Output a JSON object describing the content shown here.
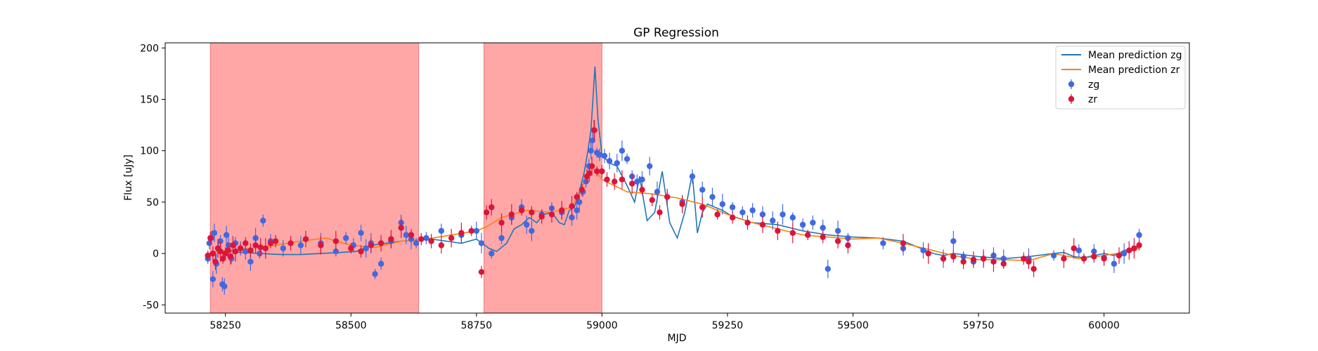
{
  "chart_data": {
    "type": "scatter",
    "title": "GP Regression",
    "xlabel": "MJD",
    "ylabel": "Flux [uJy]",
    "xlim": [
      58130,
      60170
    ],
    "ylim": [
      -58,
      205
    ],
    "xticks": [
      58250,
      58500,
      58750,
      59000,
      59250,
      59500,
      59750,
      60000
    ],
    "yticks": [
      -50,
      0,
      50,
      100,
      150,
      200
    ],
    "grid": false,
    "legend_position": "top-right",
    "shaded_regions": [
      {
        "x_start": 58220,
        "x_end": 58635,
        "color": "#ffa7a7"
      },
      {
        "x_start": 58765,
        "x_end": 59000,
        "color": "#ffa7a7"
      }
    ],
    "series": [
      {
        "name": "Mean prediction zg",
        "kind": "line",
        "color": "#1f77b4",
        "x": [
          58215,
          58235,
          58255,
          58280,
          58320,
          58360,
          58400,
          58440,
          58480,
          58510,
          58540,
          58570,
          58600,
          58630,
          58660,
          58690,
          58720,
          58750,
          58775,
          58790,
          58810,
          58825,
          58840,
          58855,
          58870,
          58885,
          58900,
          58915,
          58925,
          58935,
          58945,
          58955,
          58965,
          58972,
          58978,
          58982,
          58986,
          58992,
          59000,
          59015,
          59030,
          59050,
          59065,
          59075,
          59090,
          59105,
          59120,
          59135,
          59150,
          59165,
          59180,
          59190,
          59200,
          59210,
          59225,
          59240,
          59260,
          59300,
          59350,
          59400,
          59450,
          59500,
          59550,
          59600,
          59640,
          59660,
          59680,
          59700,
          59750,
          59800,
          59850,
          59900,
          59920,
          59940,
          59960,
          59980,
          60000,
          60020,
          60040,
          60060,
          60070
        ],
        "y": [
          0,
          2,
          3,
          1,
          0,
          -1,
          -1,
          0,
          1,
          2,
          8,
          10,
          12,
          13,
          14,
          12,
          10,
          14,
          5,
          2,
          10,
          24,
          28,
          35,
          30,
          38,
          40,
          30,
          28,
          42,
          45,
          60,
          80,
          100,
          120,
          150,
          182,
          130,
          96,
          88,
          85,
          66,
          50,
          75,
          32,
          40,
          80,
          30,
          15,
          40,
          78,
          20,
          40,
          48,
          45,
          42,
          36,
          30,
          28,
          22,
          18,
          16,
          15,
          12,
          4,
          0,
          -2,
          0,
          -3,
          -5,
          -3,
          0,
          1,
          -3,
          -4,
          -2,
          0,
          -2,
          3,
          5,
          7
        ]
      },
      {
        "name": "Mean prediction zr",
        "kind": "line",
        "color": "#ff7f0e",
        "x": [
          58215,
          58250,
          58300,
          58350,
          58400,
          58450,
          58500,
          58550,
          58600,
          58650,
          58700,
          58750,
          58770,
          58800,
          58850,
          58900,
          58940,
          58960,
          58980,
          59000,
          59050,
          59100,
          59150,
          59200,
          59250,
          59300,
          59350,
          59400,
          59450,
          59500,
          59550,
          59600,
          59650,
          59700,
          59750,
          59800,
          59850,
          59900,
          59950,
          60000,
          60050,
          60070
        ],
        "y": [
          0,
          3,
          5,
          8,
          12,
          15,
          8,
          6,
          12,
          14,
          18,
          22,
          26,
          35,
          42,
          40,
          45,
          65,
          85,
          72,
          60,
          58,
          54,
          48,
          38,
          30,
          24,
          18,
          16,
          14,
          15,
          10,
          4,
          -2,
          -6,
          -6,
          -7,
          0,
          -5,
          -2,
          2,
          5
        ]
      },
      {
        "name": "zg",
        "kind": "scatter",
        "color": "#4169e1",
        "x": [
          58215,
          58218,
          58222,
          58225,
          58228,
          58232,
          58236,
          58240,
          58244,
          58248,
          58252,
          58256,
          58262,
          58270,
          58280,
          58290,
          58300,
          58310,
          58318,
          58325,
          58340,
          58365,
          58400,
          58440,
          58470,
          58490,
          58505,
          58520,
          58530,
          58540,
          58548,
          58560,
          58580,
          58600,
          58610,
          58620,
          58630,
          58650,
          58680,
          58720,
          58750,
          58760,
          58780,
          58800,
          58820,
          58840,
          58850,
          58860,
          58880,
          58900,
          58920,
          58940,
          58950,
          58955,
          58962,
          58968,
          58974,
          58978,
          58981,
          58984,
          58990,
          58995,
          59005,
          59015,
          59030,
          59040,
          59050,
          59060,
          59070,
          59080,
          59095,
          59110,
          59130,
          59160,
          59180,
          59200,
          59220,
          59240,
          59260,
          59280,
          59300,
          59320,
          59340,
          59360,
          59380,
          59400,
          59420,
          59440,
          59450,
          59470,
          59490,
          59560,
          59600,
          59640,
          59680,
          59700,
          59720,
          59740,
          59760,
          59780,
          59800,
          59850,
          59900,
          59950,
          59980,
          60000,
          60020,
          60040,
          60060,
          60070
        ],
        "y": [
          -5,
          10,
          15,
          -25,
          20,
          -10,
          5,
          12,
          -30,
          -32,
          18,
          8,
          -5,
          10,
          5,
          2,
          -8,
          15,
          0,
          32,
          12,
          5,
          8,
          10,
          2,
          15,
          8,
          20,
          5,
          10,
          -20,
          -10,
          12,
          30,
          18,
          14,
          10,
          15,
          22,
          18,
          22,
          10,
          0,
          15,
          35,
          45,
          28,
          22,
          38,
          44,
          40,
          35,
          42,
          50,
          60,
          70,
          85,
          100,
          110,
          120,
          98,
          96,
          95,
          90,
          88,
          100,
          92,
          75,
          70,
          72,
          85,
          60,
          55,
          50,
          75,
          62,
          55,
          48,
          45,
          40,
          42,
          38,
          32,
          38,
          35,
          28,
          30,
          25,
          -15,
          22,
          15,
          10,
          5,
          3,
          -5,
          12,
          -3,
          -8,
          -5,
          -2,
          -5,
          -5,
          -2,
          3,
          2,
          -4,
          -10,
          0,
          5,
          18
        ]
      },
      {
        "name": "zr",
        "kind": "scatter",
        "color": "#dc143c",
        "x": [
          58215,
          58220,
          58225,
          58230,
          58235,
          58240,
          58245,
          58250,
          58255,
          58260,
          58265,
          58270,
          58280,
          58290,
          58300,
          58310,
          58320,
          58330,
          58340,
          58350,
          58380,
          58410,
          58440,
          58470,
          58500,
          58520,
          58540,
          58560,
          58580,
          58600,
          58620,
          58640,
          58660,
          58680,
          58700,
          58720,
          58740,
          58760,
          58770,
          58780,
          58800,
          58820,
          58840,
          58860,
          58880,
          58900,
          58920,
          58940,
          58950,
          58960,
          58970,
          58975,
          58980,
          58985,
          58990,
          59000,
          59010,
          59025,
          59040,
          59060,
          59080,
          59100,
          59115,
          59130,
          59160,
          59200,
          59230,
          59260,
          59290,
          59320,
          59350,
          59380,
          59410,
          59440,
          59470,
          59490,
          59600,
          59650,
          59680,
          59700,
          59720,
          59740,
          59760,
          59780,
          59800,
          59840,
          59850,
          59860,
          59920,
          59940,
          59960,
          59980,
          60000,
          60030,
          60050,
          60060,
          60070
        ],
        "y": [
          -2,
          15,
          0,
          -8,
          5,
          2,
          -5,
          0,
          3,
          -3,
          8,
          2,
          5,
          10,
          3,
          8,
          6,
          5,
          10,
          12,
          10,
          14,
          8,
          12,
          5,
          2,
          8,
          10,
          14,
          25,
          18,
          14,
          12,
          8,
          15,
          20,
          22,
          -18,
          40,
          45,
          30,
          38,
          42,
          40,
          36,
          38,
          42,
          46,
          55,
          62,
          75,
          78,
          85,
          120,
          80,
          80,
          72,
          70,
          72,
          68,
          62,
          52,
          40,
          55,
          48,
          45,
          38,
          35,
          30,
          28,
          22,
          20,
          18,
          16,
          12,
          8,
          10,
          0,
          -5,
          -3,
          -8,
          -6,
          -5,
          -8,
          -10,
          -5,
          -8,
          -15,
          -5,
          5,
          -5,
          -3,
          -5,
          -2,
          3,
          5,
          8
        ]
      }
    ]
  }
}
